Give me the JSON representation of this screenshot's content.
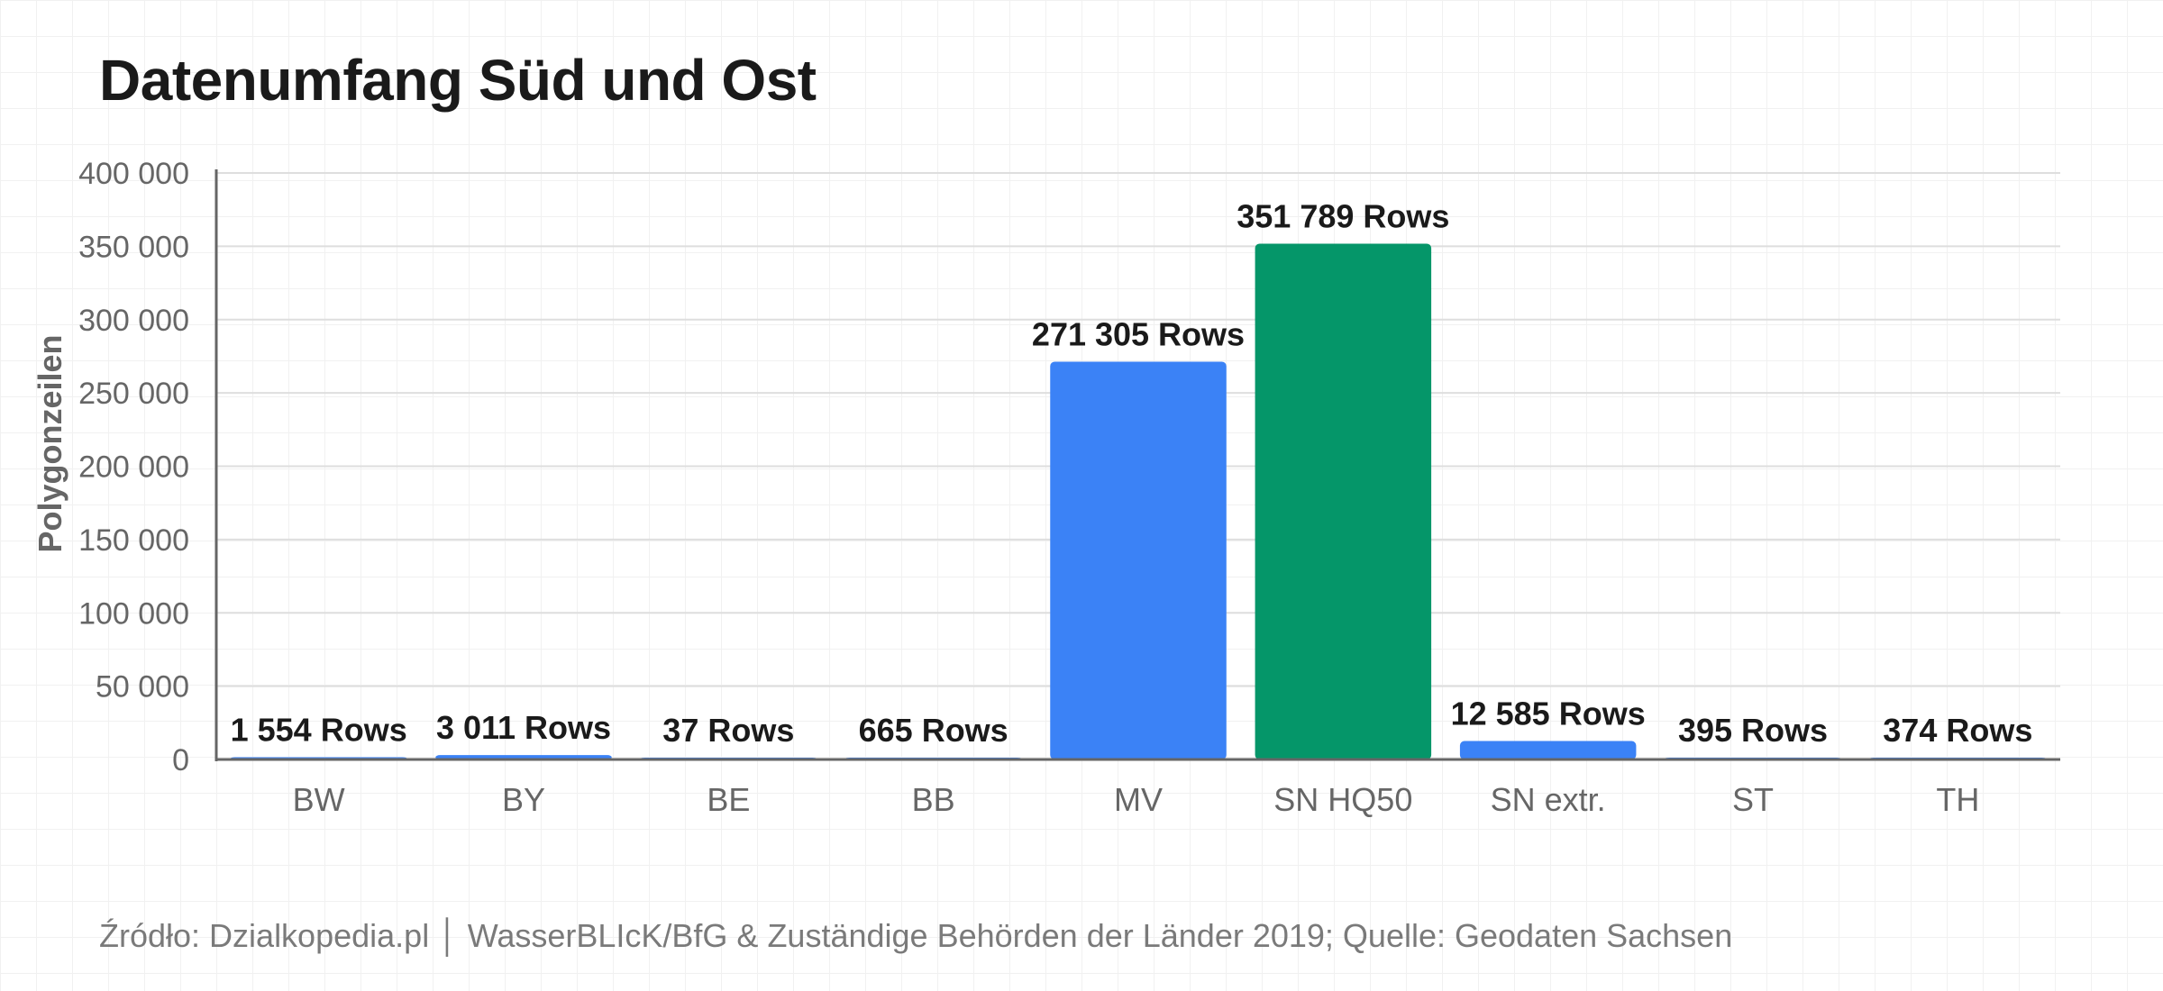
{
  "chart_data": {
    "type": "bar",
    "title": "Datenumfang Süd und Ost",
    "ylabel": "Polygonzeilen",
    "xlabel": "",
    "ylim": [
      0,
      400000
    ],
    "yticks": [
      0,
      50000,
      100000,
      150000,
      200000,
      250000,
      300000,
      350000,
      400000
    ],
    "ytick_labels": [
      "0",
      "50 000",
      "100 000",
      "150 000",
      "200 000",
      "250 000",
      "300 000",
      "350 000",
      "400 000"
    ],
    "categories": [
      "BW",
      "BY",
      "BE",
      "BB",
      "MV",
      "SN HQ50",
      "SN extr.",
      "ST",
      "TH"
    ],
    "values": [
      1554,
      3011,
      37,
      665,
      271305,
      351789,
      12585,
      395,
      374
    ],
    "value_labels": [
      "1 554 Rows",
      "3 011 Rows",
      "37 Rows",
      "665 Rows",
      "271 305 Rows",
      "351 789 Rows",
      "12 585 Rows",
      "395 Rows",
      "374 Rows"
    ],
    "bar_colors": [
      "#3b82f6",
      "#3b82f6",
      "#3b82f6",
      "#3b82f6",
      "#3b82f6",
      "#059669",
      "#3b82f6",
      "#3b82f6",
      "#3b82f6"
    ],
    "grid": true,
    "legend": "none",
    "source": "Źródło: Dzialkopedia.pl │ WasserBLIcK/BfG & Zuständige Behörden der Länder 2019; Quelle: Geodaten Sachsen"
  }
}
